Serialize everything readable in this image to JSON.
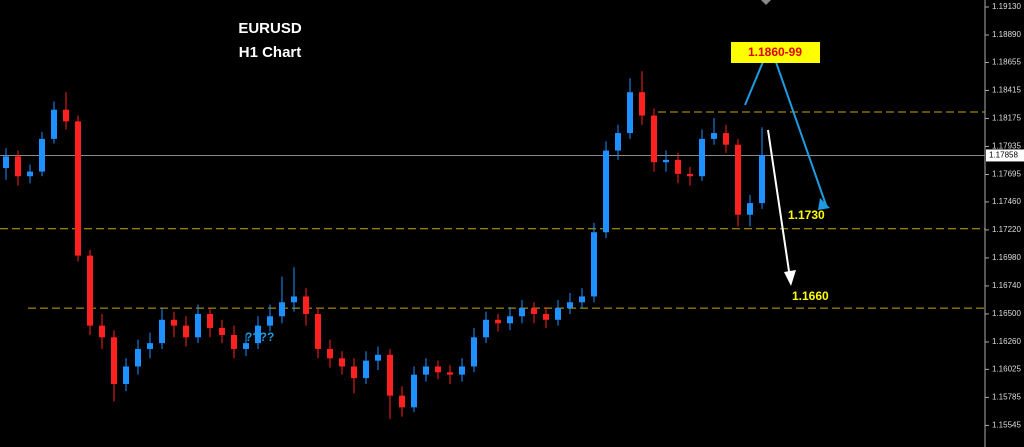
{
  "chart_data": {
    "type": "candlestick",
    "title": "EURUSD",
    "subtitle": "H1 Chart",
    "up_color": "#1e90ff",
    "down_color": "#ff2020",
    "level_color": "#c8a800",
    "open": [
      1.1775,
      1.1785,
      1.1768,
      1.1772,
      1.18,
      1.1825,
      1.1815,
      1.17,
      1.164,
      1.163,
      1.159,
      1.1605,
      1.162,
      1.1625,
      1.1645,
      1.164,
      1.163,
      1.165,
      1.1638,
      1.1632,
      1.162,
      1.1625,
      1.164,
      1.1648,
      1.166,
      1.1665,
      1.165,
      1.162,
      1.1612,
      1.1605,
      1.1595,
      1.161,
      1.1615,
      1.158,
      1.157,
      1.1598,
      1.1605,
      1.16,
      1.1598,
      1.1605,
      1.163,
      1.1645,
      1.1642,
      1.1648,
      1.1655,
      1.165,
      1.1645,
      1.1655,
      1.166,
      1.1665,
      1.172,
      1.179,
      1.1805,
      1.184,
      1.182,
      1.178,
      1.1782,
      1.177,
      1.1768,
      1.18,
      1.1805,
      1.1795,
      1.1735,
      1.1745
    ],
    "high": [
      1.1792,
      1.179,
      1.1778,
      1.1806,
      1.1832,
      1.184,
      1.182,
      1.1705,
      1.165,
      1.1636,
      1.1612,
      1.1628,
      1.1634,
      1.1655,
      1.1652,
      1.1648,
      1.1658,
      1.1655,
      1.1645,
      1.164,
      1.1632,
      1.1648,
      1.1658,
      1.1682,
      1.169,
      1.1672,
      1.1655,
      1.1628,
      1.1618,
      1.1612,
      1.1618,
      1.1622,
      1.162,
      1.1588,
      1.1605,
      1.1612,
      1.161,
      1.1606,
      1.1612,
      1.1638,
      1.1652,
      1.165,
      1.1656,
      1.1662,
      1.166,
      1.1656,
      1.1662,
      1.1668,
      1.1672,
      1.1728,
      1.1798,
      1.1812,
      1.1852,
      1.1858,
      1.1826,
      1.179,
      1.1788,
      1.1776,
      1.1808,
      1.1818,
      1.1812,
      1.18,
      1.1752,
      1.181
    ],
    "low": [
      1.1765,
      1.176,
      1.1762,
      1.1768,
      1.1796,
      1.1808,
      1.1695,
      1.1632,
      1.162,
      1.1575,
      1.1584,
      1.1598,
      1.1612,
      1.162,
      1.163,
      1.1622,
      1.1625,
      1.163,
      1.1625,
      1.1612,
      1.1614,
      1.162,
      1.1635,
      1.1642,
      1.1652,
      1.164,
      1.1612,
      1.1604,
      1.1598,
      1.1582,
      1.159,
      1.1602,
      1.156,
      1.1562,
      1.1566,
      1.1592,
      1.1594,
      1.159,
      1.1592,
      1.16,
      1.1625,
      1.1635,
      1.1636,
      1.1642,
      1.1642,
      1.1638,
      1.164,
      1.165,
      1.1655,
      1.166,
      1.1715,
      1.1782,
      1.18,
      1.1812,
      1.1772,
      1.1772,
      1.1762,
      1.176,
      1.1764,
      1.1795,
      1.1788,
      1.1725,
      1.1725,
      1.174
    ],
    "close": [
      1.1785,
      1.1768,
      1.1772,
      1.18,
      1.1825,
      1.1815,
      1.17,
      1.164,
      1.163,
      1.159,
      1.1605,
      1.162,
      1.1625,
      1.1645,
      1.164,
      1.163,
      1.165,
      1.1638,
      1.1632,
      1.162,
      1.1625,
      1.164,
      1.1648,
      1.166,
      1.1665,
      1.165,
      1.162,
      1.1612,
      1.1605,
      1.1595,
      1.161,
      1.1615,
      1.158,
      1.157,
      1.1598,
      1.1605,
      1.16,
      1.1598,
      1.1605,
      1.163,
      1.1645,
      1.1642,
      1.1648,
      1.1655,
      1.165,
      1.1645,
      1.1655,
      1.166,
      1.1665,
      1.172,
      1.179,
      1.1805,
      1.184,
      1.182,
      1.178,
      1.1782,
      1.177,
      1.1768,
      1.18,
      1.1805,
      1.1795,
      1.1735,
      1.1745,
      1.1786
    ],
    "ylim": [
      1.1536,
      1.1919
    ],
    "yticks": [
      {
        "value": 1.1913,
        "label": "1.19130"
      },
      {
        "value": 1.1889,
        "label": "1.18890"
      },
      {
        "value": 1.18655,
        "label": "1.18655"
      },
      {
        "value": 1.18415,
        "label": "1.18415"
      },
      {
        "value": 1.18175,
        "label": "1.18175"
      },
      {
        "value": 1.17935,
        "label": "1.17935"
      },
      {
        "value": 1.17695,
        "label": "1.17695"
      },
      {
        "value": 1.1746,
        "label": "1.17460"
      },
      {
        "value": 1.1722,
        "label": "1.17220"
      },
      {
        "value": 1.1698,
        "label": "1.16980"
      },
      {
        "value": 1.1674,
        "label": "1.16740"
      },
      {
        "value": 1.165,
        "label": "1.16500"
      },
      {
        "value": 1.1626,
        "label": "1.16260"
      },
      {
        "value": 1.16025,
        "label": "1.16025"
      },
      {
        "value": 1.15785,
        "label": "1.15785"
      },
      {
        "value": 1.15545,
        "label": "1.15545"
      }
    ],
    "current_price": {
      "value": 1.17858,
      "label": "1.17858"
    },
    "levels": [
      1.1823,
      1.1723,
      1.1655
    ],
    "annotations": [
      "1.1860-99",
      "1.1730",
      "1.1660",
      "????"
    ]
  }
}
